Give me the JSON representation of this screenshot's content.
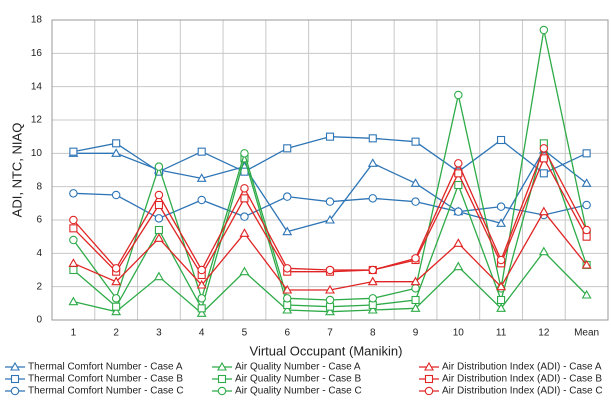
{
  "chart_data": {
    "type": "line",
    "x_label": "Virtual Occupant (Manikin)",
    "y_label": "ADI, NTC, NIAQ",
    "categories": [
      "1",
      "2",
      "3",
      "4",
      "5",
      "6",
      "7",
      "8",
      "9",
      "10",
      "11",
      "12",
      "Mean"
    ],
    "ylim": [
      0,
      18
    ],
    "yticks": [
      0,
      2,
      4,
      6,
      8,
      10,
      12,
      14,
      16,
      18
    ],
    "grid": true,
    "series": [
      {
        "name": "Thermal Comfort Number - Case A",
        "color": "#2e75b6",
        "marker": "triangle",
        "values": [
          10.0,
          10.0,
          9.0,
          8.5,
          9.2,
          5.3,
          6.0,
          9.4,
          8.2,
          6.5,
          5.8,
          10.2,
          8.2
        ]
      },
      {
        "name": "Thermal Comfort Number - Case B",
        "color": "#2e75b6",
        "marker": "square",
        "values": [
          10.1,
          10.6,
          8.9,
          10.1,
          8.9,
          10.3,
          11.0,
          10.9,
          10.7,
          8.9,
          10.8,
          8.8,
          10.0
        ]
      },
      {
        "name": "Thermal Comfort Number - Case C",
        "color": "#2e75b6",
        "marker": "circle",
        "values": [
          7.6,
          7.5,
          6.1,
          7.2,
          6.2,
          7.4,
          7.1,
          7.3,
          7.1,
          6.5,
          6.8,
          6.3,
          6.9
        ]
      },
      {
        "name": "Air Quality Number - Case A",
        "color": "#2eab48",
        "marker": "triangle",
        "values": [
          1.1,
          0.5,
          2.6,
          0.4,
          2.9,
          0.6,
          0.5,
          0.6,
          0.7,
          3.2,
          0.7,
          4.1,
          1.5
        ]
      },
      {
        "name": "Air Quality Number - Case B",
        "color": "#2eab48",
        "marker": "square",
        "values": [
          3.0,
          0.8,
          5.4,
          0.7,
          9.7,
          0.9,
          0.8,
          0.9,
          1.2,
          8.1,
          1.2,
          10.6,
          3.3
        ]
      },
      {
        "name": "Air Quality Number - Case C",
        "color": "#2eab48",
        "marker": "circle",
        "values": [
          4.8,
          1.3,
          9.2,
          1.3,
          10.0,
          1.3,
          1.2,
          1.3,
          1.9,
          13.5,
          1.9,
          17.4,
          5.3
        ]
      },
      {
        "name": "Air Distribution Index (ADI) - Case A",
        "color": "#e02424",
        "marker": "triangle",
        "values": [
          3.4,
          2.3,
          4.9,
          2.1,
          5.2,
          1.8,
          1.8,
          2.3,
          2.3,
          4.6,
          2.0,
          6.5,
          3.3
        ]
      },
      {
        "name": "Air Distribution Index (ADI) - Case B",
        "color": "#e02424",
        "marker": "square",
        "values": [
          5.5,
          2.9,
          6.9,
          2.7,
          7.3,
          2.9,
          2.9,
          3.0,
          3.6,
          8.8,
          3.4,
          9.7,
          5.0
        ]
      },
      {
        "name": "Air Distribution Index (ADI) - Case C",
        "color": "#e02424",
        "marker": "circle",
        "values": [
          6.0,
          3.1,
          7.5,
          3.0,
          7.9,
          3.1,
          3.0,
          3.0,
          3.7,
          9.4,
          3.6,
          10.3,
          5.4
        ]
      }
    ]
  }
}
